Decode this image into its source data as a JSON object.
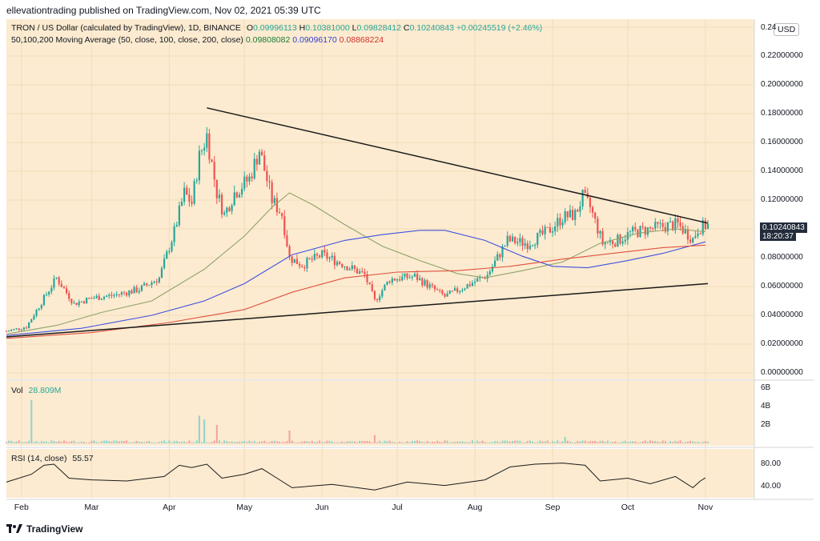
{
  "header": {
    "published": "ellevationtrading published on TradingView.com, Nov 02, 2021 05:39 UTC"
  },
  "legend": {
    "symbol": "TRON / US Dollar (calculated by TradingView), 1D, BINANCE",
    "o_label": "O",
    "o_value": "0.09996113",
    "h_label": "H",
    "h_value": "0.10381000",
    "l_label": "L",
    "l_value": "0.09828412",
    "c_label": "C",
    "c_value": "0.10240843",
    "change": "+0.00245519 (+2.46%)",
    "ma_label": "50,100,200 Moving Average (50, close, 100, close, 200, close)",
    "ma50": "0.09808082",
    "ma100": "0.09096170",
    "ma200": "0.08868224"
  },
  "price_tag": {
    "price": "0.10240843",
    "countdown": "18:20:37"
  },
  "currency_button": "USD",
  "vol_panel": {
    "label": "Vol",
    "value": "28.809M"
  },
  "rsi_panel": {
    "label": "RSI (14, close)",
    "value": "55.57"
  },
  "footer": {
    "brand": "TradingView"
  },
  "colors": {
    "bg": "#fcebd0",
    "up": "#26a69a",
    "down": "#ef5350",
    "ma50": "#8fa36b",
    "ma100": "#3f51e0",
    "ma200": "#e05040",
    "trendline": "#1a1a1a"
  },
  "chart_data": [
    {
      "type": "candlestick",
      "title": "TRON / US Dollar (calculated by TradingView), 1D, BINANCE",
      "x_start": "2021-01-26",
      "x_end": "2021-11-02",
      "x_ticks": [
        "Feb",
        "Mar",
        "Apr",
        "May",
        "Jun",
        "Jul",
        "Aug",
        "Sep",
        "Oct",
        "Nov"
      ],
      "x_tick_dates": [
        "2021-02-01",
        "2021-03-01",
        "2021-04-01",
        "2021-05-01",
        "2021-06-01",
        "2021-07-01",
        "2021-08-01",
        "2021-09-01",
        "2021-10-01",
        "2021-11-01"
      ],
      "ylim": [
        0,
        0.24
      ],
      "y_ticks": [
        "0.00000000",
        "0.02000000",
        "0.04000000",
        "0.06000000",
        "0.08000000",
        "0.10000000",
        "0.12000000",
        "0.14000000",
        "0.16000000",
        "0.18000000",
        "0.20000000",
        "0.22000000",
        "0.24"
      ],
      "y_tick_values": [
        0,
        0.02,
        0.04,
        0.06,
        0.08,
        0.1,
        0.12,
        0.14,
        0.16,
        0.18,
        0.2,
        0.22,
        0.24
      ],
      "close_path": [
        [
          "2021-01-26",
          0.029
        ],
        [
          "2021-02-03",
          0.032
        ],
        [
          "2021-02-10",
          0.052
        ],
        [
          "2021-02-15",
          0.066
        ],
        [
          "2021-02-22",
          0.048
        ],
        [
          "2021-03-01",
          0.052
        ],
        [
          "2021-03-10",
          0.054
        ],
        [
          "2021-03-20",
          0.058
        ],
        [
          "2021-03-28",
          0.066
        ],
        [
          "2021-04-03",
          0.098
        ],
        [
          "2021-04-07",
          0.125
        ],
        [
          "2021-04-10",
          0.118
        ],
        [
          "2021-04-13",
          0.15
        ],
        [
          "2021-04-16",
          0.165
        ],
        [
          "2021-04-20",
          0.125
        ],
        [
          "2021-04-23",
          0.11
        ],
        [
          "2021-04-27",
          0.125
        ],
        [
          "2021-05-03",
          0.135
        ],
        [
          "2021-05-07",
          0.155
        ],
        [
          "2021-05-12",
          0.12
        ],
        [
          "2021-05-16",
          0.11
        ],
        [
          "2021-05-19",
          0.08
        ],
        [
          "2021-05-24",
          0.075
        ],
        [
          "2021-06-01",
          0.082
        ],
        [
          "2021-06-10",
          0.075
        ],
        [
          "2021-06-18",
          0.068
        ],
        [
          "2021-06-22",
          0.05
        ],
        [
          "2021-06-28",
          0.065
        ],
        [
          "2021-07-08",
          0.067
        ],
        [
          "2021-07-14",
          0.06
        ],
        [
          "2021-07-20",
          0.053
        ],
        [
          "2021-07-28",
          0.06
        ],
        [
          "2021-08-06",
          0.068
        ],
        [
          "2021-08-14",
          0.092
        ],
        [
          "2021-08-22",
          0.09
        ],
        [
          "2021-08-30",
          0.098
        ],
        [
          "2021-09-05",
          0.108
        ],
        [
          "2021-09-10",
          0.11
        ],
        [
          "2021-09-13",
          0.122
        ],
        [
          "2021-09-16",
          0.115
        ],
        [
          "2021-09-21",
          0.09
        ],
        [
          "2021-09-27",
          0.092
        ],
        [
          "2021-10-02",
          0.097
        ],
        [
          "2021-10-10",
          0.1
        ],
        [
          "2021-10-16",
          0.102
        ],
        [
          "2021-10-21",
          0.103
        ],
        [
          "2021-10-27",
          0.093
        ],
        [
          "2021-10-29",
          0.1
        ],
        [
          "2021-11-01",
          0.1024
        ]
      ],
      "series": [
        {
          "name": "MA 50",
          "values": [
            [
              "2021-01-26",
              0.027
            ],
            [
              "2021-02-15",
              0.033
            ],
            [
              "2021-03-05",
              0.042
            ],
            [
              "2021-03-25",
              0.05
            ],
            [
              "2021-04-15",
              0.072
            ],
            [
              "2021-05-01",
              0.095
            ],
            [
              "2021-05-12",
              0.115
            ],
            [
              "2021-05-19",
              0.125
            ],
            [
              "2021-05-28",
              0.117
            ],
            [
              "2021-06-10",
              0.103
            ],
            [
              "2021-06-25",
              0.088
            ],
            [
              "2021-07-10",
              0.078
            ],
            [
              "2021-07-25",
              0.069
            ],
            [
              "2021-08-05",
              0.066
            ],
            [
              "2021-08-20",
              0.071
            ],
            [
              "2021-09-05",
              0.077
            ],
            [
              "2021-09-20",
              0.09
            ],
            [
              "2021-10-05",
              0.097
            ],
            [
              "2021-10-20",
              0.1
            ],
            [
              "2021-11-01",
              0.098
            ]
          ]
        },
        {
          "name": "MA 100",
          "values": [
            [
              "2021-01-26",
              0.026
            ],
            [
              "2021-02-25",
              0.031
            ],
            [
              "2021-03-25",
              0.04
            ],
            [
              "2021-04-15",
              0.05
            ],
            [
              "2021-05-01",
              0.062
            ],
            [
              "2021-05-20",
              0.082
            ],
            [
              "2021-06-10",
              0.092
            ],
            [
              "2021-06-25",
              0.096
            ],
            [
              "2021-07-10",
              0.099
            ],
            [
              "2021-07-20",
              0.099
            ],
            [
              "2021-08-05",
              0.092
            ],
            [
              "2021-08-20",
              0.081
            ],
            [
              "2021-09-01",
              0.074
            ],
            [
              "2021-09-15",
              0.073
            ],
            [
              "2021-10-01",
              0.078
            ],
            [
              "2021-10-15",
              0.083
            ],
            [
              "2021-11-01",
              0.091
            ]
          ]
        },
        {
          "name": "MA 200",
          "values": [
            [
              "2021-01-26",
              0.024
            ],
            [
              "2021-03-01",
              0.028
            ],
            [
              "2021-04-01",
              0.035
            ],
            [
              "2021-05-01",
              0.044
            ],
            [
              "2021-05-20",
              0.056
            ],
            [
              "2021-06-10",
              0.066
            ],
            [
              "2021-07-01",
              0.07
            ],
            [
              "2021-07-25",
              0.071
            ],
            [
              "2021-08-15",
              0.074
            ],
            [
              "2021-09-05",
              0.079
            ],
            [
              "2021-09-25",
              0.083
            ],
            [
              "2021-10-15",
              0.087
            ],
            [
              "2021-11-01",
              0.0887
            ]
          ]
        },
        {
          "name": "Upper trendline",
          "values": [
            [
              "2021-04-16",
              0.184
            ],
            [
              "2021-11-02",
              0.104
            ]
          ]
        },
        {
          "name": "Lower trendline",
          "values": [
            [
              "2021-01-26",
              0.025
            ],
            [
              "2021-11-02",
              0.062
            ]
          ]
        }
      ]
    },
    {
      "type": "bar",
      "title": "Vol",
      "y_ticks": [
        "2B",
        "4B",
        "6B"
      ],
      "y_tick_values": [
        2,
        4,
        6
      ],
      "ylim": [
        0,
        6.6
      ],
      "spikes": [
        [
          "2021-02-05",
          4.7
        ],
        [
          "2021-04-13",
          3.0
        ],
        [
          "2021-04-15",
          2.6
        ],
        [
          "2021-04-20",
          2.0
        ],
        [
          "2021-05-19",
          1.4
        ],
        [
          "2021-06-22",
          0.9
        ],
        [
          "2021-09-06",
          0.7
        ]
      ]
    },
    {
      "type": "line",
      "title": "RSI (14, close)",
      "y_ticks": [
        "40.00",
        "80.00"
      ],
      "y_tick_values": [
        40,
        80
      ],
      "ylim": [
        20,
        100
      ],
      "values": [
        [
          "2021-01-26",
          48
        ],
        [
          "2021-02-05",
          62
        ],
        [
          "2021-02-10",
          78
        ],
        [
          "2021-02-14",
          80
        ],
        [
          "2021-02-20",
          55
        ],
        [
          "2021-03-01",
          52
        ],
        [
          "2021-03-15",
          50
        ],
        [
          "2021-03-30",
          58
        ],
        [
          "2021-04-05",
          78
        ],
        [
          "2021-04-10",
          74
        ],
        [
          "2021-04-16",
          80
        ],
        [
          "2021-04-22",
          55
        ],
        [
          "2021-05-01",
          62
        ],
        [
          "2021-05-08",
          72
        ],
        [
          "2021-05-14",
          55
        ],
        [
          "2021-05-20",
          38
        ],
        [
          "2021-06-05",
          44
        ],
        [
          "2021-06-22",
          34
        ],
        [
          "2021-07-05",
          48
        ],
        [
          "2021-07-20",
          42
        ],
        [
          "2021-08-05",
          52
        ],
        [
          "2021-08-15",
          75
        ],
        [
          "2021-08-25",
          80
        ],
        [
          "2021-09-05",
          82
        ],
        [
          "2021-09-14",
          78
        ],
        [
          "2021-09-20",
          50
        ],
        [
          "2021-10-01",
          55
        ],
        [
          "2021-10-10",
          45
        ],
        [
          "2021-10-20",
          58
        ],
        [
          "2021-10-27",
          38
        ],
        [
          "2021-10-30",
          50
        ],
        [
          "2021-11-01",
          55.57
        ]
      ]
    }
  ]
}
